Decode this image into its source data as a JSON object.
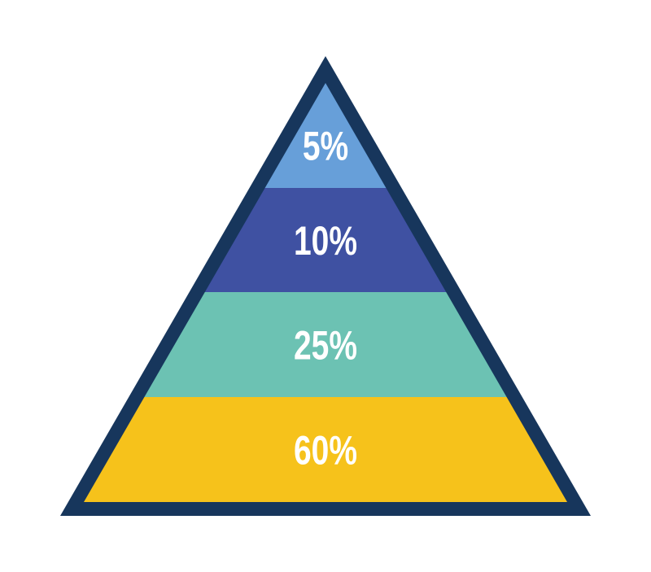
{
  "pyramid": {
    "outline_color": "#17365c",
    "levels": [
      {
        "label": "5%",
        "color": "#679fd9"
      },
      {
        "label": "10%",
        "color": "#3f51a2"
      },
      {
        "label": "25%",
        "color": "#6cc2b3"
      },
      {
        "label": "60%",
        "color": "#f6c21b"
      }
    ]
  }
}
